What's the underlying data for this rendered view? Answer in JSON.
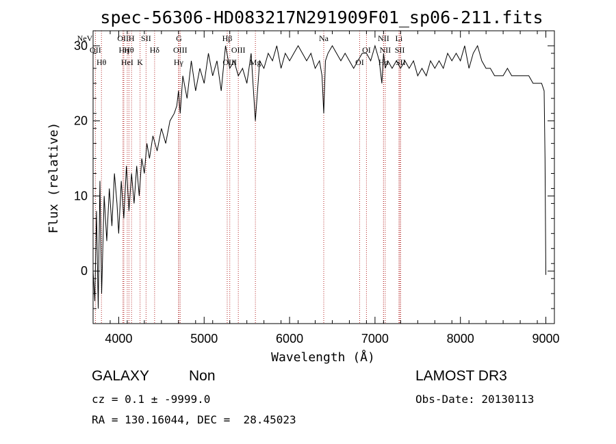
{
  "chart_data": {
    "type": "line",
    "title": "spec-56306-HD083217N291909F01_sp06-211.fits",
    "xlabel": "Wavelength (Å)",
    "ylabel": "Flux (relative)",
    "xlim": [
      3700,
      9100
    ],
    "ylim": [
      -7,
      32
    ],
    "xticks": [
      4000,
      5000,
      6000,
      7000,
      8000,
      9000
    ],
    "yticks": [
      0,
      10,
      20,
      30
    ],
    "series": [
      {
        "name": "spectrum",
        "x": [
          3700,
          3720,
          3740,
          3760,
          3780,
          3800,
          3830,
          3860,
          3890,
          3920,
          3950,
          3980,
          4000,
          4030,
          4060,
          4090,
          4120,
          4150,
          4180,
          4210,
          4240,
          4270,
          4300,
          4330,
          4360,
          4400,
          4450,
          4500,
          4550,
          4600,
          4650,
          4680,
          4700,
          4720,
          4750,
          4800,
          4850,
          4900,
          4950,
          5000,
          5050,
          5100,
          5150,
          5200,
          5250,
          5300,
          5350,
          5400,
          5450,
          5500,
          5550,
          5600,
          5650,
          5700,
          5750,
          5800,
          5850,
          5900,
          5950,
          6000,
          6050,
          6100,
          6150,
          6200,
          6250,
          6300,
          6350,
          6380,
          6400,
          6420,
          6450,
          6500,
          6550,
          6600,
          6650,
          6700,
          6750,
          6800,
          6850,
          6900,
          6950,
          7000,
          7050,
          7080,
          7100,
          7120,
          7150,
          7200,
          7250,
          7300,
          7350,
          7400,
          7450,
          7500,
          7550,
          7600,
          7650,
          7700,
          7750,
          7800,
          7850,
          7900,
          7950,
          8000,
          8050,
          8100,
          8150,
          8200,
          8250,
          8300,
          8350,
          8400,
          8450,
          8500,
          8550,
          8600,
          8650,
          8700,
          8750,
          8800,
          8850,
          8900,
          8950,
          8980,
          8990,
          9000
        ],
        "y": [
          0,
          -4,
          8,
          -5,
          12,
          -3,
          10,
          4,
          11,
          6,
          13,
          9,
          5,
          12,
          7,
          14,
          8,
          13,
          9,
          14,
          10,
          15,
          13,
          17,
          15,
          18,
          16,
          19,
          17,
          20,
          21,
          22,
          24,
          21,
          26,
          23,
          28,
          24,
          27,
          25,
          29,
          26,
          28,
          24,
          30,
          27,
          28,
          26,
          27,
          25,
          29,
          20,
          28,
          27,
          29,
          28,
          30,
          27,
          29,
          28,
          29,
          30,
          29,
          28,
          29,
          27,
          28,
          26,
          21,
          28,
          29,
          30,
          29,
          28,
          29,
          28,
          27,
          28,
          29,
          29,
          28,
          30,
          28,
          25,
          29,
          27,
          28,
          27,
          28,
          27,
          28,
          27,
          28,
          26,
          27,
          26,
          28,
          27,
          28,
          27,
          29,
          28,
          29,
          28,
          30,
          27,
          29,
          30,
          28,
          27,
          27,
          26,
          26,
          26,
          27,
          26,
          26,
          26,
          26,
          26,
          25,
          25,
          25,
          24,
          15,
          -0.5
        ]
      }
    ],
    "emission_lines": [
      {
        "label": "NeV",
        "x": 3426
      },
      {
        "label": "OII",
        "x": 3727
      },
      {
        "label": "Hθ",
        "x": 3798
      },
      {
        "label": "OII",
        "x": 4050
      },
      {
        "label": "Hη",
        "x": 4060
      },
      {
        "label": "HeI",
        "x": 4100
      },
      {
        "label": "H",
        "x": 4150
      },
      {
        "label": "Hθ",
        "x": 4120
      },
      {
        "label": "K",
        "x": 4250
      },
      {
        "label": "SII",
        "x": 4320
      },
      {
        "label": "Hδ",
        "x": 4420
      },
      {
        "label": "Hγ",
        "x": 4700
      },
      {
        "label": "G",
        "x": 4705
      },
      {
        "label": "OIII",
        "x": 4720
      },
      {
        "label": "OIII",
        "x": 5300
      },
      {
        "label": "Hβ",
        "x": 5270
      },
      {
        "label": "OIII",
        "x": 5400
      },
      {
        "label": "Mg",
        "x": 5600
      },
      {
        "label": "Na",
        "x": 6400
      },
      {
        "label": "OI",
        "x": 6900
      },
      {
        "label": "OI",
        "x": 6820
      },
      {
        "label": "NII",
        "x": 7100
      },
      {
        "label": "NII",
        "x": 7120
      },
      {
        "label": "Hα",
        "x": 7100
      },
      {
        "label": "Li",
        "x": 7280
      },
      {
        "label": "SII",
        "x": 7290
      },
      {
        "label": "SII",
        "x": 7300
      }
    ]
  },
  "info": {
    "object_class": "GALAXY",
    "subclass": "Non",
    "survey": "LAMOST DR3",
    "cz_line": "cz = 0.1 ± -9999.0",
    "obs_date": "Obs-Date: 20130113",
    "coords": "RA = 130.16044, DEC =  28.45023"
  },
  "colors": {
    "spectrum": "#000000",
    "line_marker": "#b22222",
    "axis": "#000000"
  }
}
